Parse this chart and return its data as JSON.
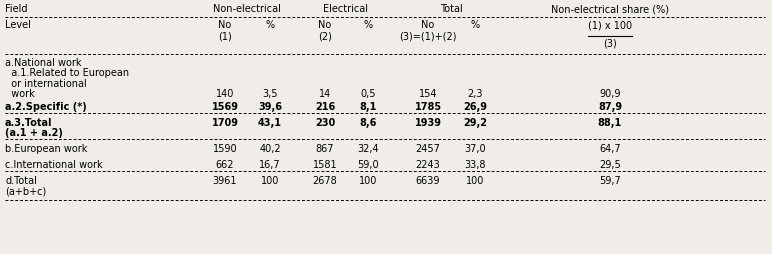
{
  "bg_color": "#f0ede8",
  "font_size": 7.0,
  "rows": [
    {
      "label": [
        "a.National work",
        "  a.1.Related to European",
        "  or international",
        "  work"
      ],
      "bold": false,
      "values": [
        "140",
        "3,5",
        "14",
        "0,5",
        "154",
        "2,3",
        "90,9"
      ],
      "val_line": 3,
      "dashed_above": false
    },
    {
      "label": [
        "a.2.Specific (*)"
      ],
      "bold": true,
      "values": [
        "1569",
        "39,6",
        "216",
        "8,1",
        "1785",
        "26,9",
        "87,9"
      ],
      "val_line": 0,
      "dashed_above": false
    },
    {
      "label": [
        "a.3.Total",
        "(a.1 + a.2)"
      ],
      "bold": true,
      "values": [
        "1709",
        "43,1",
        "230",
        "8,6",
        "1939",
        "29,2",
        "88,1"
      ],
      "val_line": 0,
      "dashed_above": true
    },
    {
      "label": [
        "b.European work"
      ],
      "bold": false,
      "values": [
        "1590",
        "40,2",
        "867",
        "32,4",
        "2457",
        "37,0",
        "64,7"
      ],
      "val_line": 0,
      "dashed_above": true
    },
    {
      "label": [
        "c.International work"
      ],
      "bold": false,
      "values": [
        "662",
        "16,7",
        "1581",
        "59,0",
        "2243",
        "33,8",
        "29,5"
      ],
      "val_line": 0,
      "dashed_above": false
    },
    {
      "label": [
        "d.Total",
        "(a+b+c)"
      ],
      "bold": false,
      "values": [
        "3961",
        "100",
        "2678",
        "100",
        "6639",
        "100",
        "59,7"
      ],
      "val_line": 0,
      "dashed_above": true
    }
  ]
}
